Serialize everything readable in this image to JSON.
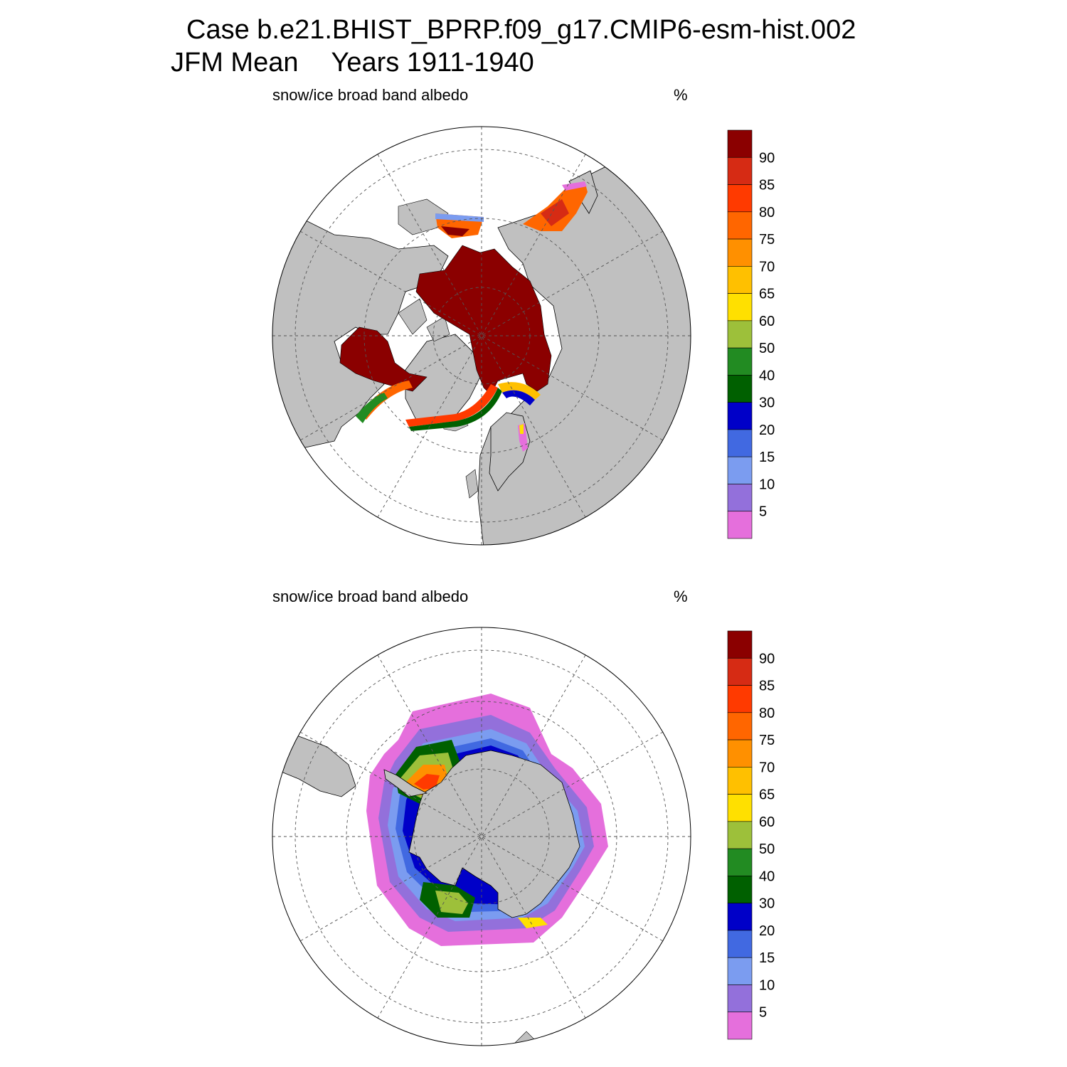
{
  "figure": {
    "title_line1": "Case b.e21.BHIST_BPRP.f09_g17.CMIP6-esm-hist.002",
    "title_season": "JFM Mean",
    "title_years": "Years 1911-1940"
  },
  "panels": [
    {
      "id": "north",
      "variable_label": "snow/ice broad band albedo",
      "units_label": "%"
    },
    {
      "id": "south",
      "variable_label": "snow/ice broad band albedo",
      "units_label": "%"
    }
  ],
  "colorbar": {
    "levels": [
      "90",
      "85",
      "80",
      "75",
      "70",
      "65",
      "60",
      "50",
      "40",
      "30",
      "20",
      "15",
      "10",
      "5"
    ],
    "colors": [
      "#8b0000",
      "#d62b14",
      "#ff3a00",
      "#ff6600",
      "#ff9000",
      "#ffc000",
      "#ffe000",
      "#9dc03a",
      "#228b22",
      "#006000",
      "#0000c8",
      "#4169e1",
      "#7b9cf0",
      "#9370db",
      "#e56fdc"
    ]
  },
  "map_style": {
    "land_color": "#c0c0c0",
    "ocean_color": "#ffffff"
  }
}
